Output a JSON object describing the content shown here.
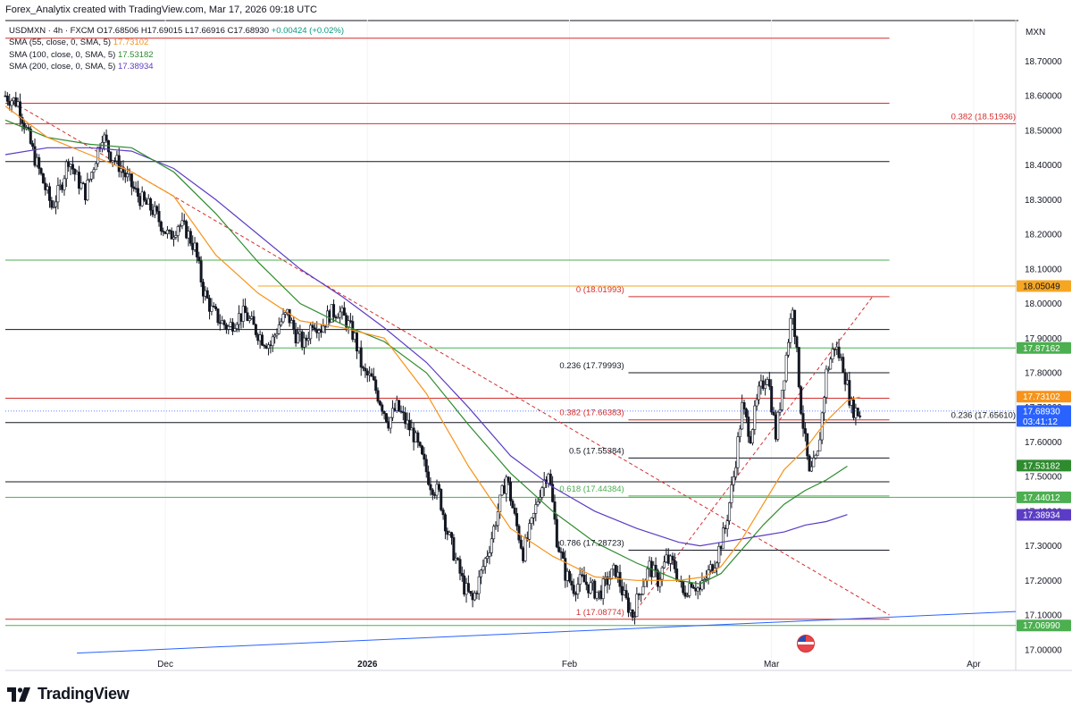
{
  "header": {
    "attribution": "Forex_Analytix created with TradingView.com, Mar 17, 2026 09:18 UTC"
  },
  "legend": {
    "symbol_line": {
      "symbol": "USDMXN · 4h · FXCM",
      "ohlc": "O17.68506 H17.69015 L17.66916 C17.68930",
      "change": "+0.00424 (+0.02%)"
    },
    "sma55": {
      "label": "SMA (55, close, 0, SMA, 5)",
      "value": "17.73102"
    },
    "sma100": {
      "label": "SMA (100, close, 0, SMA, 5)",
      "value": "17.53182"
    },
    "sma200": {
      "label": "SMA (200, close, 0, SMA, 5)",
      "value": "17.38934"
    }
  },
  "price_axis": {
    "currency": "MXN"
  },
  "brand": {
    "name": "TradingView"
  },
  "colors": {
    "up": "#089981",
    "down": "#131722",
    "candle": "#131722",
    "sma55": "#f7931a",
    "sma100": "#2e8b2e",
    "sma200": "#5b3cc4",
    "red_line": "#d32f2f",
    "green_line": "#4caf50",
    "black_line": "#131722",
    "orange_line": "#f5a623",
    "blue_line": "#2962ff",
    "fib_red": "#d32f2f"
  },
  "chart_data": {
    "type": "candlestick",
    "symbol": "USDMXN",
    "timeframe": "4h",
    "ylim": [
      16.94,
      18.82
    ],
    "y_ticks": [
      "18.70000",
      "18.60000",
      "18.50000",
      "18.40000",
      "18.30000",
      "18.20000",
      "18.10000",
      "18.00000",
      "17.90000",
      "17.80000",
      "17.70000",
      "17.60000",
      "17.50000",
      "17.40000",
      "17.30000",
      "17.20000",
      "17.10000",
      "17.00000"
    ],
    "x_ticks": [
      "Dec",
      "2026",
      "Feb",
      "Mar",
      "Apr"
    ],
    "price_path": [
      [
        0,
        18.6
      ],
      [
        3,
        18.58
      ],
      [
        5,
        18.5
      ],
      [
        7,
        18.42
      ],
      [
        9,
        18.35
      ],
      [
        11,
        18.28
      ],
      [
        13,
        18.33
      ],
      [
        15,
        18.42
      ],
      [
        17,
        18.36
      ],
      [
        19,
        18.32
      ],
      [
        21,
        18.4
      ],
      [
        23,
        18.49
      ],
      [
        25,
        18.43
      ],
      [
        27,
        18.4
      ],
      [
        29,
        18.36
      ],
      [
        31,
        18.32
      ],
      [
        33,
        18.29
      ],
      [
        35,
        18.27
      ],
      [
        37,
        18.23
      ],
      [
        39,
        18.19
      ],
      [
        41,
        18.23
      ],
      [
        43,
        18.21
      ],
      [
        45,
        18.16
      ],
      [
        47,
        18.04
      ],
      [
        49,
        17.98
      ],
      [
        51,
        17.95
      ],
      [
        53,
        17.93
      ],
      [
        55,
        17.96
      ],
      [
        57,
        17.97
      ],
      [
        59,
        17.93
      ],
      [
        61,
        17.9
      ],
      [
        63,
        17.88
      ],
      [
        65,
        17.94
      ],
      [
        67,
        17.97
      ],
      [
        69,
        17.91
      ],
      [
        71,
        17.88
      ],
      [
        73,
        17.95
      ],
      [
        75,
        17.93
      ],
      [
        77,
        17.97
      ],
      [
        79,
        17.98
      ],
      [
        81,
        17.95
      ],
      [
        83,
        17.9
      ],
      [
        85,
        17.8
      ],
      [
        87,
        17.78
      ],
      [
        89,
        17.72
      ],
      [
        91,
        17.66
      ],
      [
        93,
        17.7
      ],
      [
        95,
        17.66
      ],
      [
        97,
        17.62
      ],
      [
        99,
        17.55
      ],
      [
        101,
        17.48
      ],
      [
        103,
        17.45
      ],
      [
        105,
        17.34
      ],
      [
        107,
        17.26
      ],
      [
        109,
        17.18
      ],
      [
        111,
        17.14
      ],
      [
        113,
        17.22
      ],
      [
        115,
        17.3
      ],
      [
        117,
        17.4
      ],
      [
        119,
        17.5
      ],
      [
        121,
        17.38
      ],
      [
        123,
        17.28
      ],
      [
        125,
        17.36
      ],
      [
        127,
        17.46
      ],
      [
        129,
        17.52
      ],
      [
        131,
        17.32
      ],
      [
        133,
        17.22
      ],
      [
        135,
        17.18
      ],
      [
        137,
        17.2
      ],
      [
        139,
        17.18
      ],
      [
        141,
        17.16
      ],
      [
        143,
        17.2
      ],
      [
        145,
        17.23
      ],
      [
        147,
        17.15
      ],
      [
        149,
        17.1
      ],
      [
        151,
        17.18
      ],
      [
        153,
        17.24
      ],
      [
        155,
        17.2
      ],
      [
        157,
        17.26
      ],
      [
        159,
        17.24
      ],
      [
        161,
        17.16
      ],
      [
        163,
        17.2
      ],
      [
        165,
        17.17
      ],
      [
        167,
        17.22
      ],
      [
        169,
        17.27
      ],
      [
        171,
        17.35
      ],
      [
        173,
        17.5
      ],
      [
        175,
        17.7
      ],
      [
        177,
        17.62
      ],
      [
        179,
        17.74
      ],
      [
        181,
        17.8
      ],
      [
        183,
        17.62
      ],
      [
        185,
        17.8
      ],
      [
        187,
        18.0
      ],
      [
        189,
        17.7
      ],
      [
        191,
        17.5
      ],
      [
        193,
        17.56
      ],
      [
        195,
        17.8
      ],
      [
        197,
        17.88
      ],
      [
        199,
        17.82
      ],
      [
        201,
        17.7
      ],
      [
        203,
        17.68
      ]
    ],
    "sma55": [
      [
        0,
        18.57
      ],
      [
        10,
        18.48
      ],
      [
        20,
        18.43
      ],
      [
        30,
        18.38
      ],
      [
        40,
        18.31
      ],
      [
        50,
        18.14
      ],
      [
        60,
        18.03
      ],
      [
        70,
        17.95
      ],
      [
        80,
        17.93
      ],
      [
        90,
        17.9
      ],
      [
        100,
        17.74
      ],
      [
        110,
        17.53
      ],
      [
        120,
        17.35
      ],
      [
        130,
        17.27
      ],
      [
        140,
        17.21
      ],
      [
        150,
        17.2
      ],
      [
        160,
        17.2
      ],
      [
        166,
        17.21
      ],
      [
        170,
        17.24
      ],
      [
        175,
        17.32
      ],
      [
        180,
        17.42
      ],
      [
        185,
        17.52
      ],
      [
        190,
        17.58
      ],
      [
        195,
        17.66
      ],
      [
        200,
        17.72
      ],
      [
        203,
        17.73
      ]
    ],
    "sma100": [
      [
        0,
        18.53
      ],
      [
        10,
        18.48
      ],
      [
        20,
        18.46
      ],
      [
        30,
        18.45
      ],
      [
        40,
        18.38
      ],
      [
        50,
        18.26
      ],
      [
        60,
        18.12
      ],
      [
        70,
        18.0
      ],
      [
        80,
        17.94
      ],
      [
        90,
        17.89
      ],
      [
        100,
        17.8
      ],
      [
        110,
        17.65
      ],
      [
        120,
        17.51
      ],
      [
        130,
        17.4
      ],
      [
        140,
        17.31
      ],
      [
        150,
        17.25
      ],
      [
        160,
        17.2
      ],
      [
        165,
        17.19
      ],
      [
        170,
        17.22
      ],
      [
        175,
        17.29
      ],
      [
        180,
        17.36
      ],
      [
        185,
        17.42
      ],
      [
        190,
        17.46
      ],
      [
        195,
        17.49
      ],
      [
        200,
        17.53
      ]
    ],
    "sma200": [
      [
        0,
        18.43
      ],
      [
        10,
        18.45
      ],
      [
        20,
        18.45
      ],
      [
        30,
        18.44
      ],
      [
        40,
        18.39
      ],
      [
        50,
        18.3
      ],
      [
        60,
        18.2
      ],
      [
        70,
        18.1
      ],
      [
        80,
        18.02
      ],
      [
        90,
        17.93
      ],
      [
        100,
        17.83
      ],
      [
        110,
        17.7
      ],
      [
        120,
        17.56
      ],
      [
        130,
        17.47
      ],
      [
        140,
        17.4
      ],
      [
        150,
        17.35
      ],
      [
        160,
        17.31
      ],
      [
        165,
        17.3
      ],
      [
        170,
        17.31
      ],
      [
        175,
        17.32
      ],
      [
        180,
        17.33
      ],
      [
        185,
        17.34
      ],
      [
        190,
        17.36
      ],
      [
        195,
        17.37
      ],
      [
        200,
        17.39
      ]
    ],
    "horizontal_lines": [
      {
        "price": 18.7663,
        "color": "red_line",
        "from": 0,
        "to": 210
      },
      {
        "price": 18.5784,
        "color": "red_line",
        "from": 0,
        "to": 210
      },
      {
        "price": 18.5194,
        "color": "red_line",
        "from": 0,
        "to": 240
      },
      {
        "price": 18.41,
        "color": "black_line",
        "from": 0,
        "to": 210
      },
      {
        "price": 18.1252,
        "color": "green_line",
        "from": 0,
        "to": 210
      },
      {
        "price": 18.0505,
        "color": "orange_line",
        "from": 60,
        "to": 240
      },
      {
        "price": 18.0199,
        "color": "red_line",
        "from": 148,
        "to": 210
      },
      {
        "price": 17.925,
        "color": "black_line",
        "from": 0,
        "to": 210
      },
      {
        "price": 17.8716,
        "color": "green_line",
        "from": 62,
        "to": 240
      },
      {
        "price": 17.7999,
        "color": "black_line",
        "from": 148,
        "to": 210
      },
      {
        "price": 17.7265,
        "color": "red_line",
        "from": 0,
        "to": 210
      },
      {
        "price": 17.6638,
        "color": "red_line",
        "from": 148,
        "to": 210
      },
      {
        "price": 17.6561,
        "color": "black_line",
        "from": 0,
        "to": 240
      },
      {
        "price": 17.5538,
        "color": "black_line",
        "from": 148,
        "to": 210
      },
      {
        "price": 17.485,
        "color": "black_line",
        "from": 0,
        "to": 210
      },
      {
        "price": 17.4438,
        "color": "green_line",
        "from": 148,
        "to": 210
      },
      {
        "price": 17.4401,
        "color": "green_line",
        "from": 0,
        "to": 240
      },
      {
        "price": 17.2872,
        "color": "black_line",
        "from": 148,
        "to": 210
      },
      {
        "price": 17.0877,
        "color": "red_line",
        "from": 0,
        "to": 210
      },
      {
        "price": 17.0699,
        "color": "green_line",
        "from": 0,
        "to": 240
      }
    ],
    "fib_labels": [
      {
        "text": "0.382 (18.51936)",
        "price": 18.5194,
        "x": 240,
        "color": "fib_red",
        "align": "end"
      },
      {
        "text": "0 (18.01993)",
        "price": 18.0199,
        "x": 147,
        "color": "fib_red",
        "align": "end"
      },
      {
        "text": "0.236 (17.79993)",
        "price": 17.7999,
        "x": 147,
        "color": "black_line",
        "align": "end"
      },
      {
        "text": "0.382 (17.66383)",
        "price": 17.6638,
        "x": 147,
        "color": "fib_red",
        "align": "end"
      },
      {
        "text": "0.236 (17.65610)",
        "price": 17.6561,
        "x": 240,
        "color": "black_line",
        "align": "end"
      },
      {
        "text": "0.5 (17.55384)",
        "price": 17.5538,
        "x": 147,
        "color": "black_line",
        "align": "end"
      },
      {
        "text": "0.618 (17.44384)",
        "price": 17.4438,
        "x": 147,
        "color": "green_line",
        "align": "end"
      },
      {
        "text": "0.786 (17.28723)",
        "price": 17.2872,
        "x": 147,
        "color": "black_line",
        "align": "end"
      },
      {
        "text": "1 (17.08774)",
        "price": 17.0877,
        "x": 147,
        "color": "fib_red",
        "align": "end"
      }
    ],
    "trend_lines": [
      {
        "from": [
          2,
          18.58
        ],
        "to": [
          210,
          17.1
        ],
        "color": "red_line",
        "dash": true
      },
      {
        "from": [
          149,
          17.1
        ],
        "to": [
          206,
          18.02
        ],
        "color": "red_line",
        "dash": true
      },
      {
        "from": [
          17,
          16.99
        ],
        "to": [
          240,
          17.11
        ],
        "color": "blue_line",
        "dash": false
      }
    ],
    "price_labels": [
      {
        "text": "18.05049",
        "price": 18.0505,
        "bg": "#f5a623",
        "fg": "#131722"
      },
      {
        "text": "17.87162",
        "price": 17.8716,
        "bg": "#4caf50",
        "fg": "#ffffff"
      },
      {
        "text": "17.73102",
        "price": 17.731,
        "bg": "#f7931a",
        "fg": "#ffffff"
      },
      {
        "text": "17.68930",
        "price": 17.6893,
        "bg": "#2962ff",
        "fg": "#ffffff",
        "sub": "03:41:12"
      },
      {
        "text": "17.53182",
        "price": 17.5318,
        "bg": "#2e8b2e",
        "fg": "#ffffff"
      },
      {
        "text": "17.44012",
        "price": 17.4401,
        "bg": "#4caf50",
        "fg": "#ffffff"
      },
      {
        "text": "17.38934",
        "price": 17.3893,
        "bg": "#5b3cc4",
        "fg": "#ffffff"
      },
      {
        "text": "17.06990",
        "price": 17.0699,
        "bg": "#4caf50",
        "fg": "#ffffff"
      }
    ]
  }
}
